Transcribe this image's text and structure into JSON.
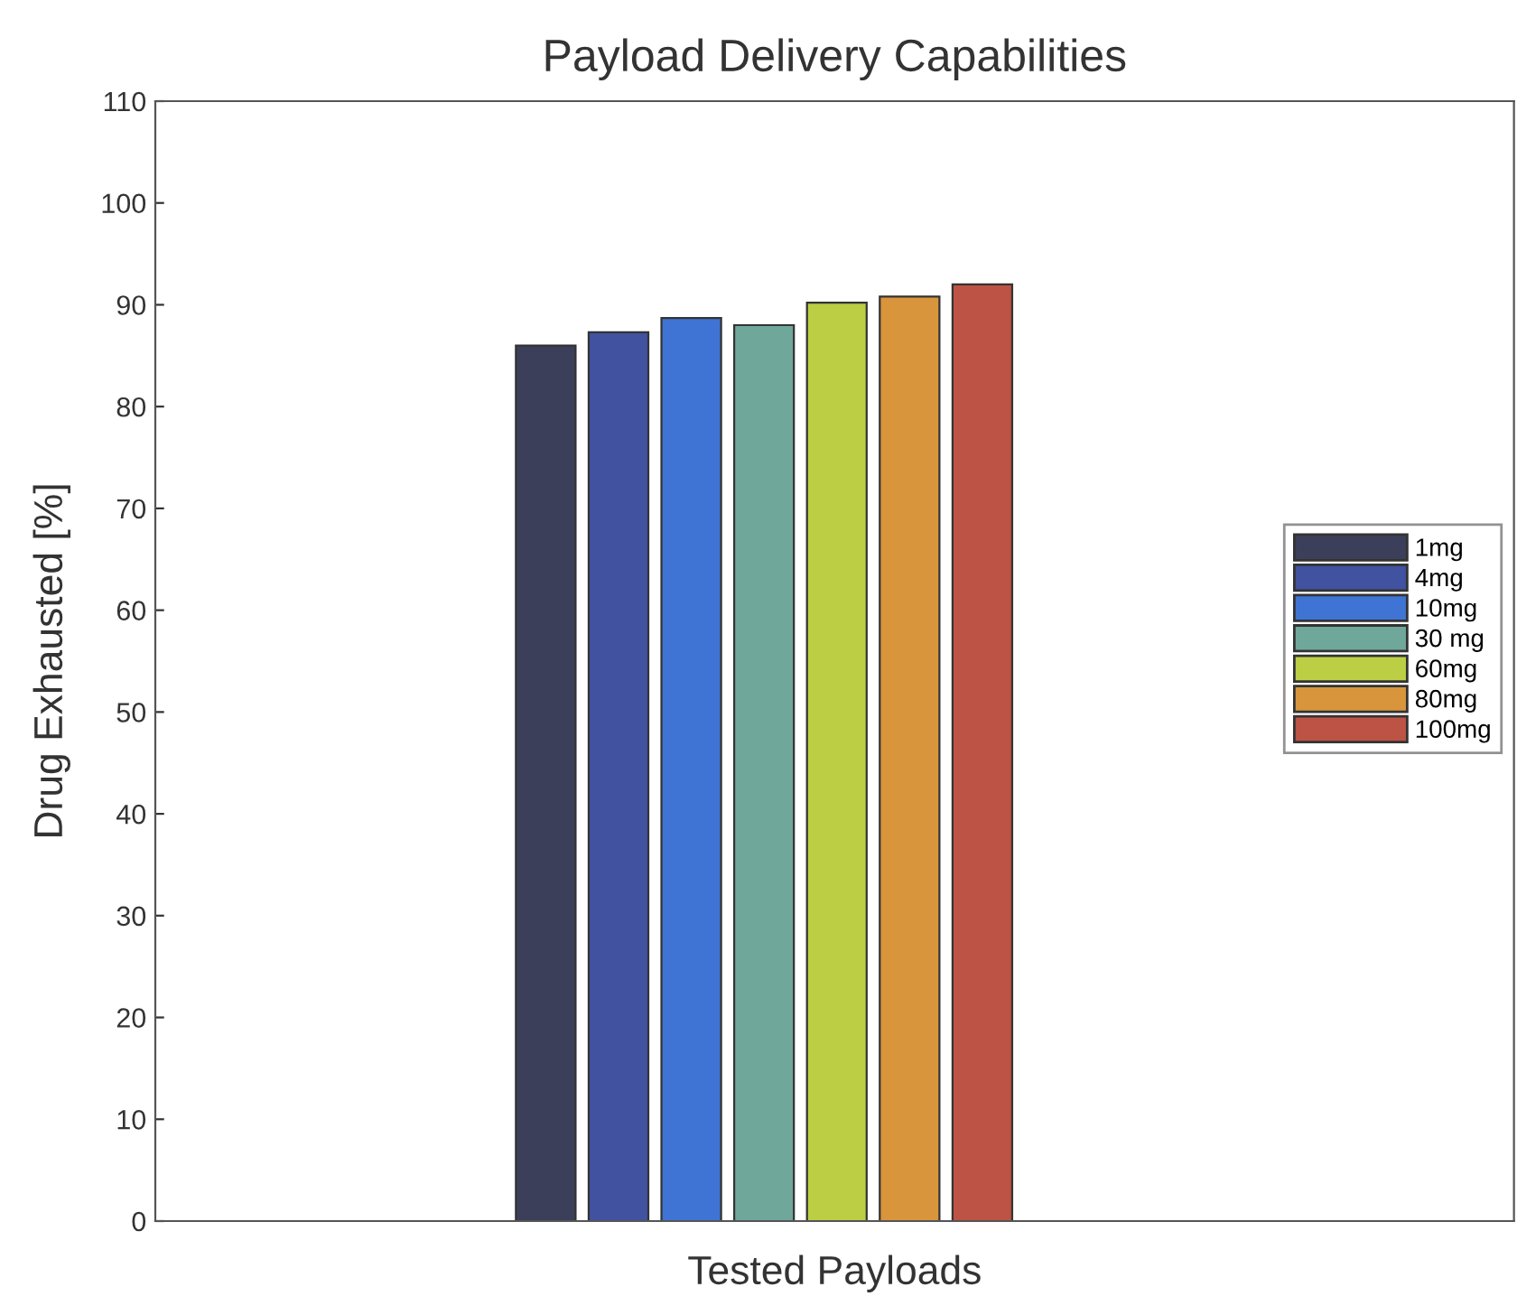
{
  "chart_data": {
    "type": "bar",
    "title": "Payload Delivery Capabilities",
    "xlabel": "Tested Payloads",
    "ylabel": "Drug Exhausted [%]",
    "categories": [
      null
    ],
    "series": [
      {
        "name": "1mg",
        "color": "#3b3f5a",
        "values": [
          86.0
        ]
      },
      {
        "name": "4mg",
        "color": "#4052a0",
        "values": [
          87.3
        ]
      },
      {
        "name": "10mg",
        "color": "#3f74d4",
        "values": [
          88.7
        ]
      },
      {
        "name": "30 mg",
        "color": "#6fa89a",
        "values": [
          88.0
        ]
      },
      {
        "name": "60mg",
        "color": "#bccf44",
        "values": [
          90.2
        ]
      },
      {
        "name": "80mg",
        "color": "#d9953c",
        "values": [
          90.8
        ]
      },
      {
        "name": "100mg",
        "color": "#bd5344",
        "values": [
          92.0
        ]
      }
    ],
    "ylim": [
      0,
      110
    ],
    "yticks": [
      0,
      10,
      20,
      30,
      40,
      50,
      60,
      70,
      80,
      90,
      100,
      110
    ],
    "legend": "right",
    "grid": false
  }
}
